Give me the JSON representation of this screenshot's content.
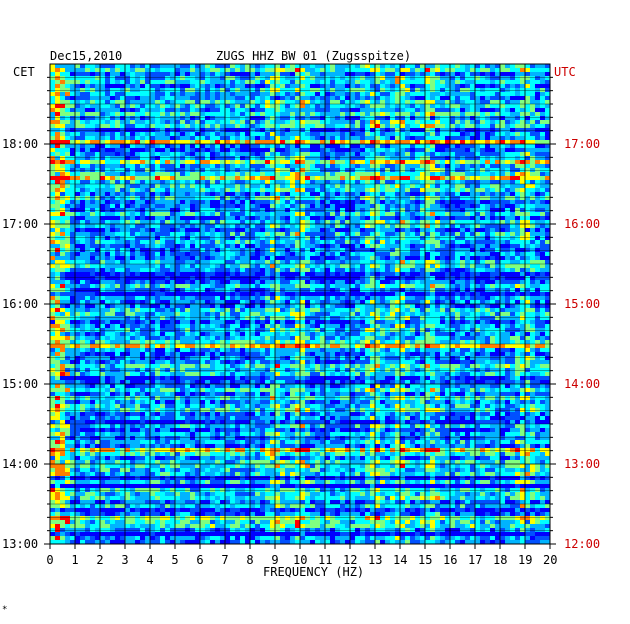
{
  "chart_data": {
    "type": "heatmap",
    "title": "ZUGS HHZ BW 01 (Zugsspitze)",
    "date": "Dec15,2010",
    "xlabel": "FREQUENCY (HZ)",
    "left_axis_label": "CET",
    "right_axis_label": "UTC",
    "xlim": [
      0,
      20
    ],
    "x_ticks": [
      "0",
      "1",
      "2",
      "3",
      "4",
      "5",
      "6",
      "7",
      "8",
      "9",
      "10",
      "11",
      "12",
      "13",
      "14",
      "15",
      "16",
      "17",
      "18",
      "19",
      "20"
    ],
    "y_ticks_left": [
      "18:00",
      "17:00",
      "16:00",
      "15:00",
      "14:00",
      "13:00"
    ],
    "y_ticks_right": [
      "17:00",
      "16:00",
      "15:00",
      "14:00",
      "13:00",
      "12:00"
    ],
    "time_range_cet": [
      "13:00",
      "18:50"
    ],
    "colormap": [
      "#00008b",
      "#0000ff",
      "#0050ff",
      "#00b4ff",
      "#00ffff",
      "#80ff80",
      "#ffff00",
      "#ff8000",
      "#ff0000"
    ],
    "dominant_frequency_bands_hz": [
      0.3,
      9.0,
      10.0,
      13.0,
      14.0,
      15.2,
      19.0
    ],
    "grid": true
  },
  "footer_mark": "*"
}
